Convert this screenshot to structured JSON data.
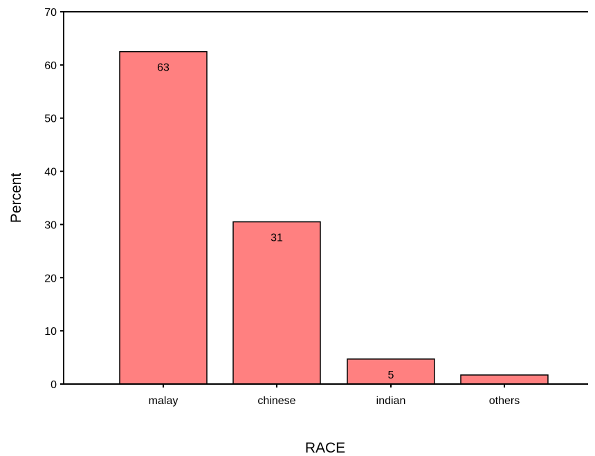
{
  "chart_data": {
    "type": "bar",
    "title": "",
    "xlabel": "RACE",
    "ylabel": "Percent",
    "categories": [
      "malay",
      "chinese",
      "indian",
      "others"
    ],
    "values": [
      62.5,
      30.5,
      4.7,
      1.7
    ],
    "data_labels": [
      "63",
      "31",
      "5",
      ""
    ],
    "yticks": [
      0,
      10,
      20,
      30,
      40,
      50,
      60,
      70
    ],
    "ylim": [
      0,
      70
    ],
    "grid": false,
    "legend": "none",
    "bar_color": "#FF8080",
    "bar_stroke": "#000000"
  }
}
